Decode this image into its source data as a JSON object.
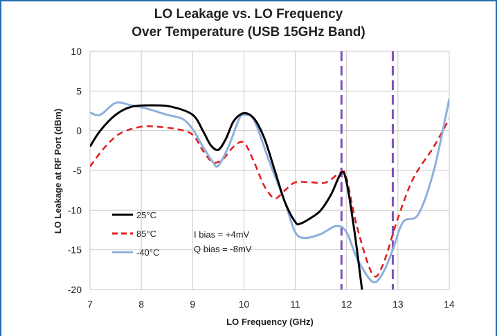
{
  "chart_data": {
    "type": "line",
    "title": "LO Leakage vs. LO Frequency",
    "subtitle": "Over Temperature (USB 15GHz Band)",
    "xlabel": "LO Frequency (GHz)",
    "ylabel": "LO Leakage at RF Port (dBm)",
    "xlim": [
      7,
      14
    ],
    "ylim": [
      -20,
      10
    ],
    "x_ticks": [
      "7",
      "8",
      "9",
      "10",
      "11",
      "12",
      "13",
      "14"
    ],
    "y_ticks": [
      "10",
      "5",
      "0",
      "-5",
      "-10",
      "-15",
      "-20"
    ],
    "grid": true,
    "legend_position": "lower-left",
    "series": [
      {
        "name": "25°C",
        "color": "#000000",
        "dash": "solid",
        "x": [
          7.0,
          7.2,
          7.5,
          7.8,
          8.2,
          8.6,
          9.0,
          9.2,
          9.35,
          9.5,
          9.65,
          9.8,
          10.0,
          10.2,
          10.4,
          10.6,
          10.8,
          11.0,
          11.1,
          11.3,
          11.5,
          11.7,
          11.9,
          12.0,
          12.15,
          12.3
        ],
        "values": [
          -2,
          0,
          2,
          3,
          3.2,
          3,
          2,
          0,
          -1.8,
          -2.4,
          -1,
          1.2,
          2.2,
          1.5,
          -1,
          -5,
          -9,
          -11.5,
          -11.7,
          -11,
          -10,
          -8,
          -5.3,
          -6.5,
          -12.5,
          -20
        ]
      },
      {
        "name": "85°C",
        "color": "#e02020",
        "dash": "dashed",
        "x": [
          7.0,
          7.3,
          7.6,
          8.0,
          8.3,
          8.7,
          9.0,
          9.2,
          9.4,
          9.6,
          9.8,
          10.0,
          10.2,
          10.4,
          10.6,
          10.8,
          11.0,
          11.3,
          11.6,
          11.9,
          12.0,
          12.2,
          12.5,
          12.7,
          13.0,
          13.3,
          13.7,
          14.0
        ],
        "values": [
          -4.5,
          -2,
          -0.3,
          0.5,
          0.5,
          0.2,
          -0.5,
          -2.5,
          -4,
          -3.5,
          -2,
          -1.5,
          -4,
          -7,
          -8.5,
          -7.5,
          -6.5,
          -6.5,
          -6.5,
          -5.2,
          -6,
          -12,
          -18,
          -17,
          -11,
          -6,
          -2,
          1.5
        ]
      },
      {
        "name": "-40°C",
        "color": "#8db0dc",
        "dash": "solid",
        "x": [
          7.0,
          7.2,
          7.5,
          7.8,
          8.1,
          8.5,
          8.8,
          9.0,
          9.2,
          9.4,
          9.5,
          9.7,
          9.9,
          10.0,
          10.2,
          10.5,
          10.8,
          11.0,
          11.2,
          11.5,
          11.8,
          12.0,
          12.2,
          12.5,
          12.7,
          12.9,
          13.1,
          13.4,
          13.7,
          14.0
        ],
        "values": [
          2.3,
          2,
          3.5,
          3.2,
          2.8,
          2,
          1.5,
          0.2,
          -2,
          -4,
          -4.4,
          -2,
          1.4,
          2,
          1.3,
          -4,
          -9,
          -12.8,
          -13.5,
          -13,
          -12,
          -12.8,
          -16,
          -19,
          -18,
          -15,
          -11.5,
          -10.5,
          -5,
          4
        ]
      }
    ],
    "vlines": [
      {
        "x": 11.9,
        "color": "#8050b8",
        "style": "dashed"
      },
      {
        "x": 12.9,
        "color": "#8050b8",
        "style": "dashed"
      }
    ],
    "annotations": [
      "I bias  = +4mV",
      "Q bias = -8mV"
    ]
  }
}
